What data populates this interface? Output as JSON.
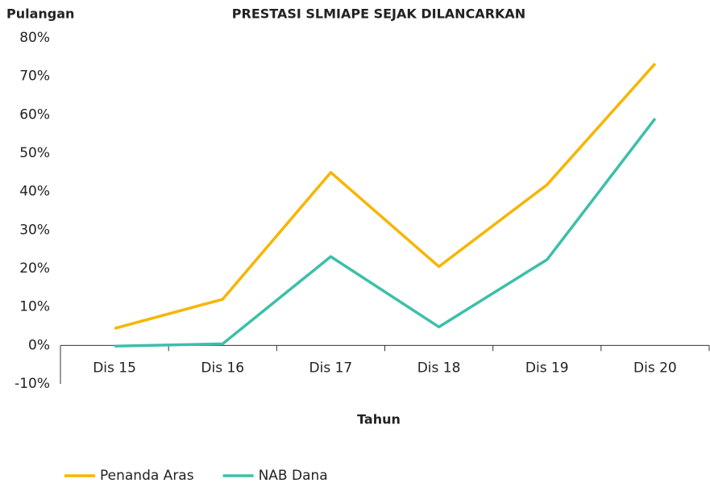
{
  "chart_data": {
    "type": "line",
    "title": "PRESTASI SLMIAPE SEJAK DILANCARKAN",
    "y_label": "Pulangan",
    "x_label": "Tahun",
    "categories": [
      "Dis 15",
      "Dis 16",
      "Dis 17",
      "Dis 18",
      "Dis 19",
      "Dis 20"
    ],
    "series": [
      {
        "name": "Penanda Aras",
        "color": "#f7b500",
        "values": [
          4.4,
          12,
          45,
          20.5,
          41.8,
          73.3
        ]
      },
      {
        "name": "NAB Dana",
        "color": "#3dbfa9",
        "values": [
          -0.2,
          0.4,
          23.1,
          4.8,
          22.3,
          59
        ]
      }
    ],
    "ylim": [
      -10,
      80
    ],
    "yticks": [
      {
        "value": -10,
        "label": "-10%"
      },
      {
        "value": 0,
        "label": "0%"
      },
      {
        "value": 10,
        "label": "10%"
      },
      {
        "value": 20,
        "label": "20%"
      },
      {
        "value": 30,
        "label": "30%"
      },
      {
        "value": 40,
        "label": "40%"
      },
      {
        "value": 50,
        "label": "50%"
      },
      {
        "value": 60,
        "label": "60%"
      },
      {
        "value": 70,
        "label": "70%"
      },
      {
        "value": 80,
        "label": "80%"
      }
    ],
    "grid": false,
    "legend": "bottom-left"
  }
}
